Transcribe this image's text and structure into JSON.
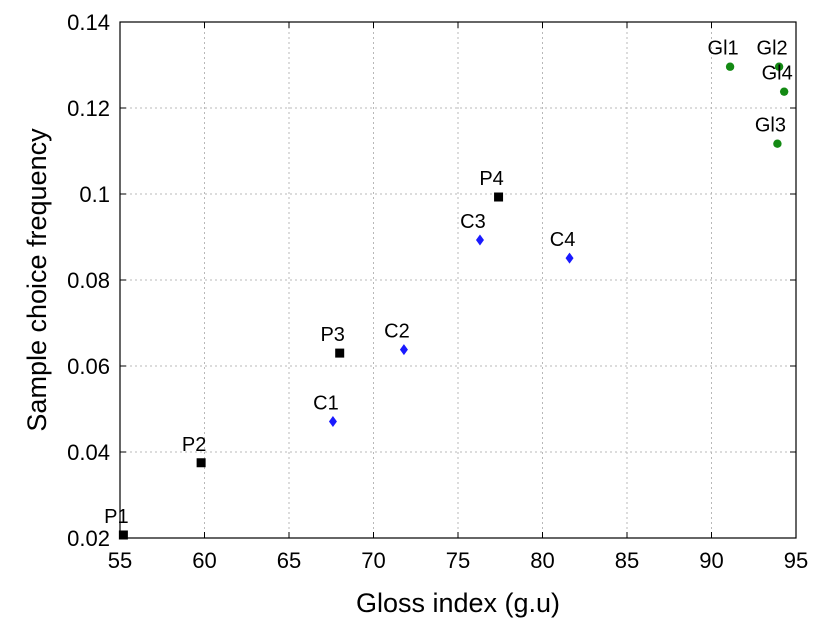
{
  "chart_data": {
    "type": "scatter",
    "title": "",
    "xlabel": "Gloss index (g.u)",
    "ylabel": "Sample choice frequency",
    "xlim": [
      55,
      95
    ],
    "ylim": [
      0.02,
      0.14
    ],
    "xticks": [
      55,
      60,
      65,
      70,
      75,
      80,
      85,
      90,
      95
    ],
    "yticks": [
      0.02,
      0.04,
      0.06,
      0.08,
      0.1,
      0.12,
      0.14
    ],
    "xtick_labels": [
      "55",
      "60",
      "65",
      "70",
      "75",
      "80",
      "85",
      "90",
      "95"
    ],
    "ytick_labels": [
      "0.02",
      "0.04",
      "0.06",
      "0.08",
      "0.1",
      "0.12",
      "0.14"
    ],
    "grid": true,
    "legend": "none",
    "series": [
      {
        "marker": "square",
        "color": "#000000",
        "points": [
          {
            "label": "P1",
            "x": 55.2,
            "y": 0.0207
          },
          {
            "label": "P2",
            "x": 59.8,
            "y": 0.0375
          },
          {
            "label": "P3",
            "x": 68.0,
            "y": 0.063
          },
          {
            "label": "P4",
            "x": 77.4,
            "y": 0.0993
          }
        ]
      },
      {
        "marker": "diamond",
        "color": "#1a1aff",
        "points": [
          {
            "label": "C1",
            "x": 67.6,
            "y": 0.0471
          },
          {
            "label": "C2",
            "x": 71.8,
            "y": 0.0638
          },
          {
            "label": "C3",
            "x": 76.3,
            "y": 0.0893
          },
          {
            "label": "C4",
            "x": 81.6,
            "y": 0.0851
          }
        ]
      },
      {
        "marker": "circle",
        "color": "#138a13",
        "points": [
          {
            "label": "Gl1",
            "x": 91.1,
            "y": 0.1296
          },
          {
            "label": "Gl2",
            "x": 94.0,
            "y": 0.1296
          },
          {
            "label": "Gl4",
            "x": 94.3,
            "y": 0.1238
          },
          {
            "label": "Gl3",
            "x": 93.9,
            "y": 0.1117
          }
        ]
      }
    ]
  }
}
